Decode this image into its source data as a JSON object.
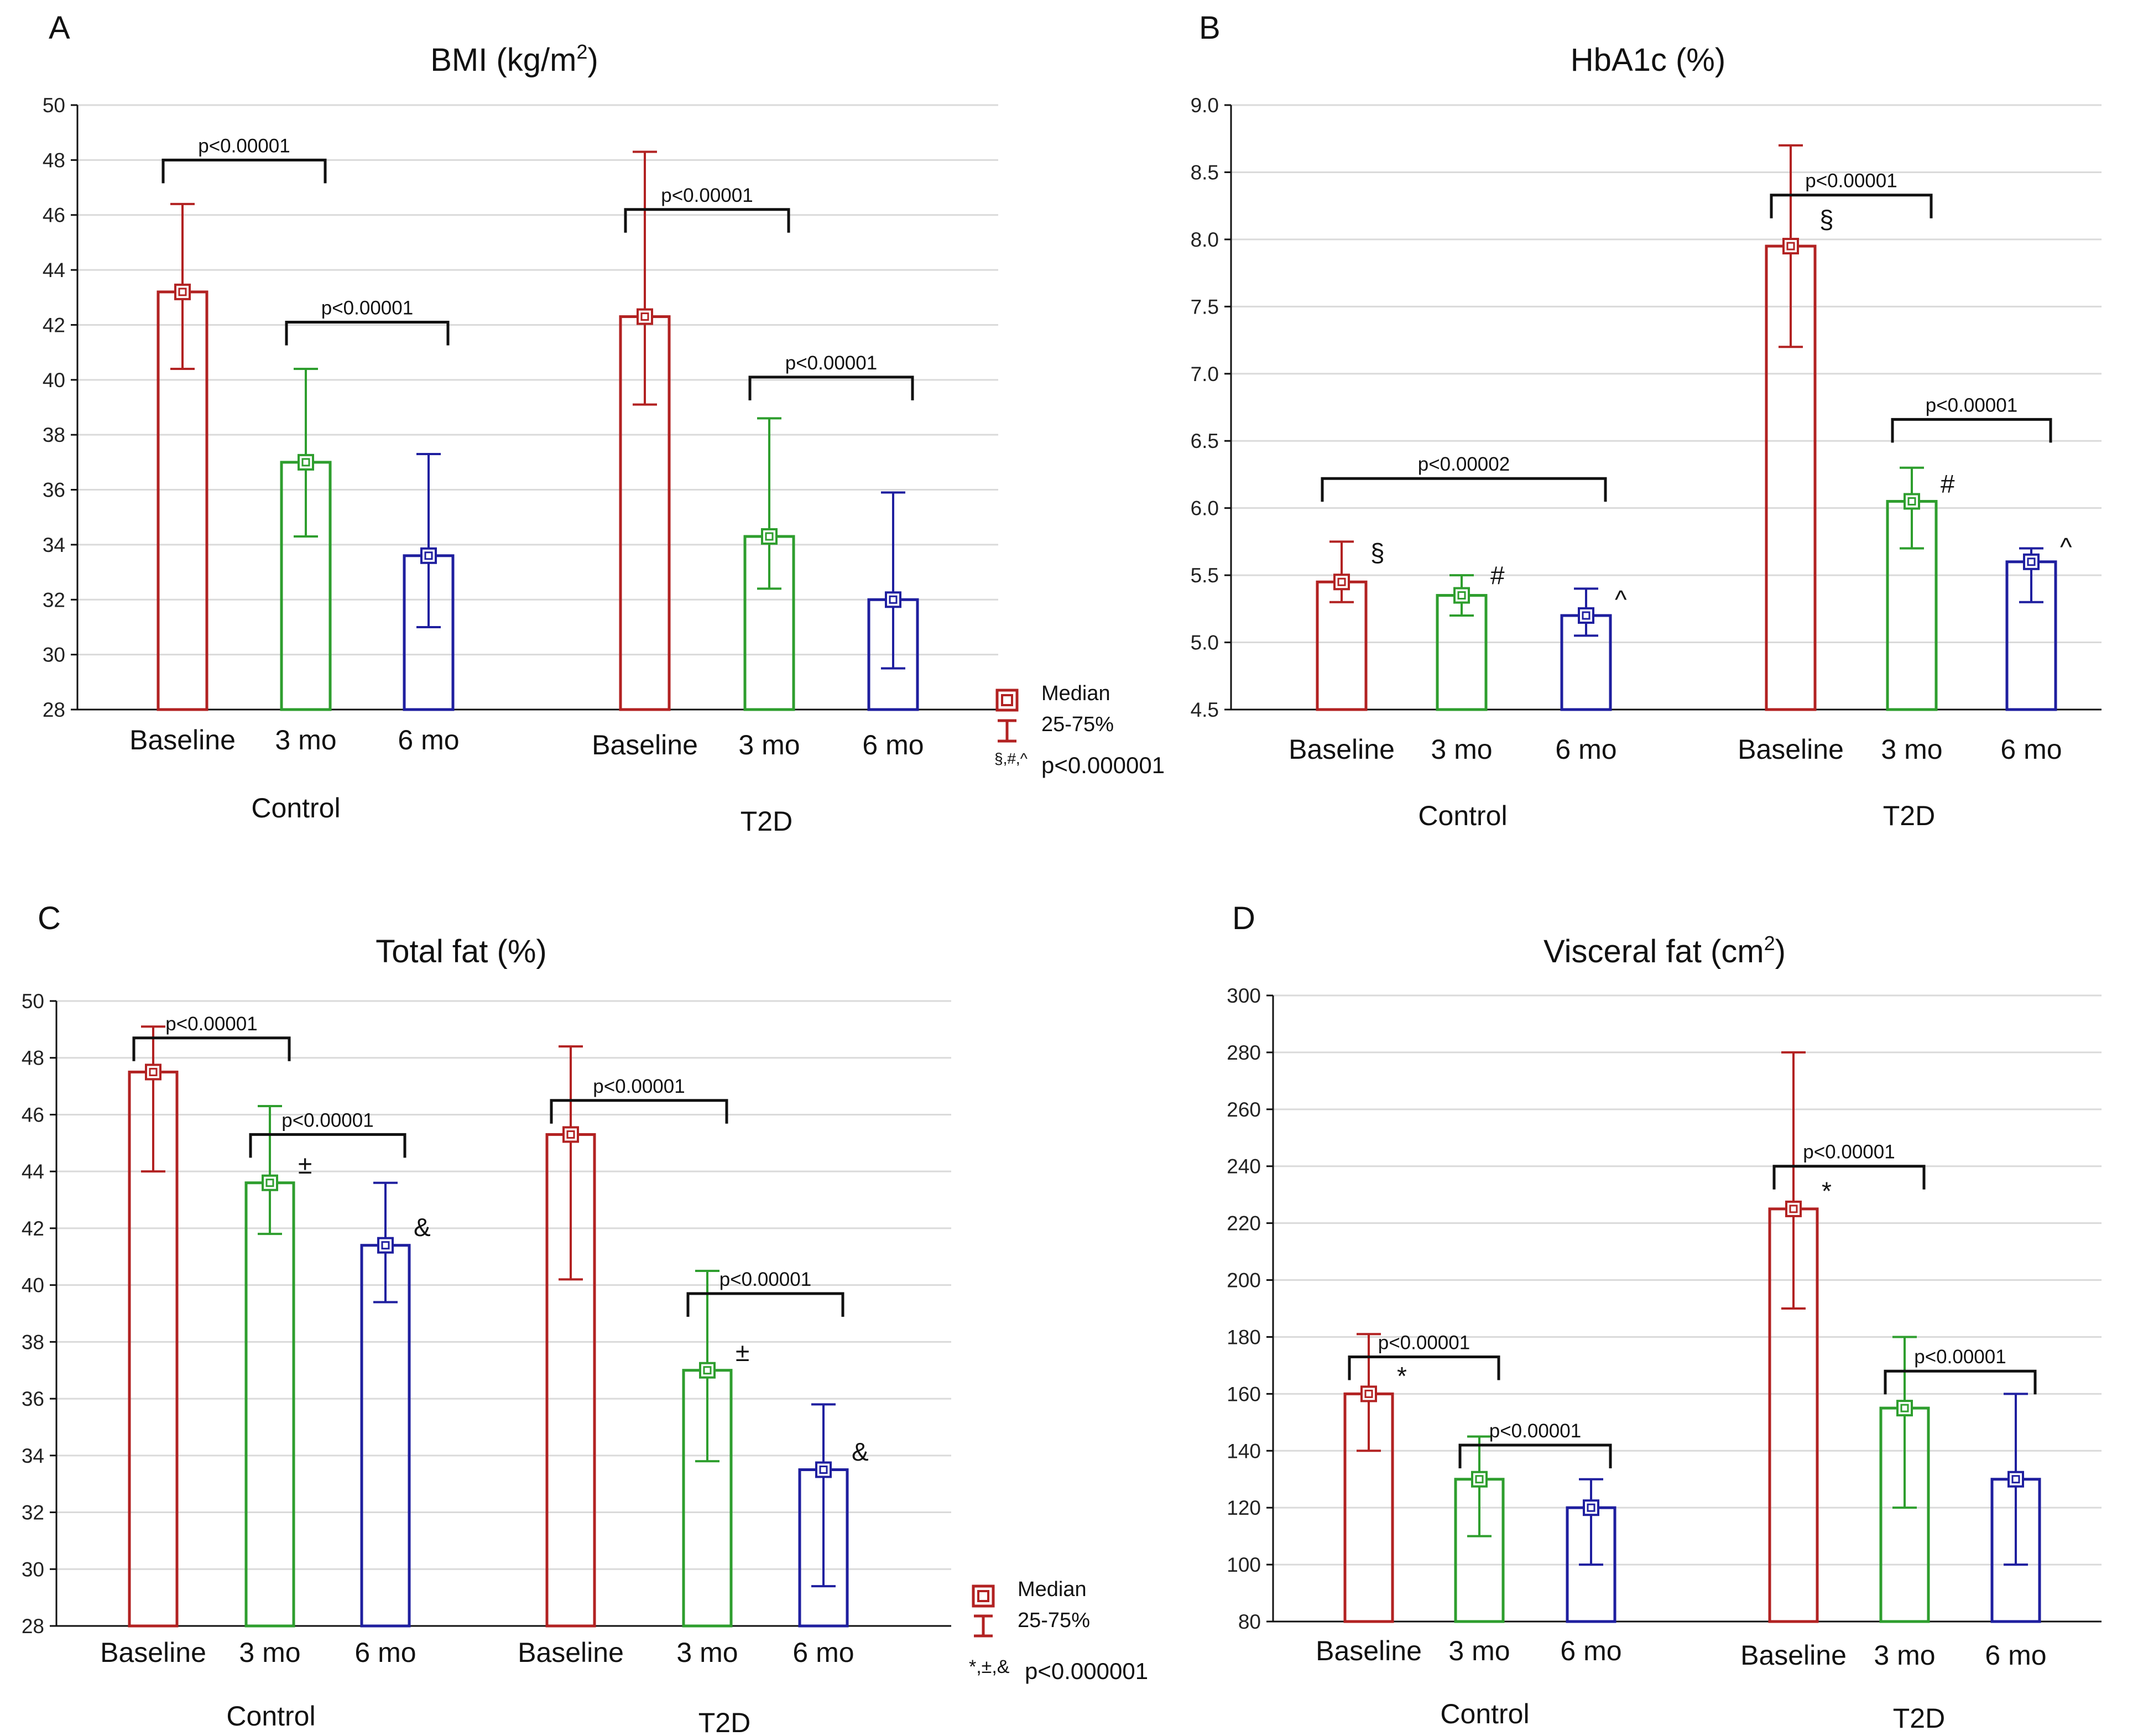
{
  "colors": {
    "baseline": "#b22222",
    "mo3": "#2e9e2e",
    "mo6": "#1f1f9f"
  },
  "legend_box_1": {
    "median_label": "Median",
    "range_label": "25-75%",
    "marks": "§,#,^",
    "note": "p<0.000001"
  },
  "legend_box_2": {
    "median_label": "Median",
    "range_label": "25-75%",
    "marks": "*,±,&",
    "note": "p<0.000001"
  },
  "chart_data": [
    {
      "panel": "A",
      "type": "bar",
      "title_main": "BMI (kg/m",
      "title_sup": "2",
      "title_end": ")",
      "ylim": [
        28,
        50
      ],
      "yticks": [
        28,
        30,
        32,
        34,
        36,
        38,
        40,
        42,
        44,
        46,
        48,
        50
      ],
      "ytick_decimals": 0,
      "categories": [
        "Baseline",
        "3 mo",
        "6 mo"
      ],
      "groups": [
        {
          "name": "Control",
          "series": [
            {
              "category": "Baseline",
              "median": 43.2,
              "q1": 40.4,
              "q3": 46.4
            },
            {
              "category": "3 mo",
              "median": 37.0,
              "q1": 34.3,
              "q3": 40.4
            },
            {
              "category": "6 mo",
              "median": 33.6,
              "q1": 31.0,
              "q3": 37.3
            }
          ]
        },
        {
          "name": "T2D",
          "series": [
            {
              "category": "Baseline",
              "median": 42.3,
              "q1": 39.1,
              "q3": 48.3
            },
            {
              "category": "3 mo",
              "median": 34.3,
              "q1": 32.4,
              "q3": 38.6
            },
            {
              "category": "6 mo",
              "median": 32.0,
              "q1": 29.5,
              "q3": 35.9
            }
          ]
        }
      ],
      "annotations": [
        {
          "group": 0,
          "from": 0,
          "to": 1,
          "level": 48,
          "text": "p<0.00001"
        },
        {
          "group": 0,
          "from": 1,
          "to": 2,
          "level": 42.1,
          "text": "p<0.00001"
        },
        {
          "group": 1,
          "from": 0,
          "to": 1,
          "level": 46.2,
          "text": "p<0.00001"
        },
        {
          "group": 1,
          "from": 1,
          "to": 2,
          "level": 40.1,
          "text": "p<0.00001"
        }
      ],
      "markers": []
    },
    {
      "panel": "B",
      "type": "bar",
      "title_main": "HbA1c (%)",
      "title_sup": "",
      "title_end": "",
      "ylim": [
        4.5,
        9.0
      ],
      "yticks": [
        4.5,
        5.0,
        5.5,
        6.0,
        6.5,
        7.0,
        7.5,
        8.0,
        8.5,
        9.0
      ],
      "ytick_decimals": 1,
      "categories": [
        "Baseline",
        "3 mo",
        "6 mo"
      ],
      "groups": [
        {
          "name": "Control",
          "series": [
            {
              "category": "Baseline",
              "median": 5.45,
              "q1": 5.3,
              "q3": 5.75
            },
            {
              "category": "3 mo",
              "median": 5.35,
              "q1": 5.2,
              "q3": 5.5
            },
            {
              "category": "6 mo",
              "median": 5.2,
              "q1": 5.05,
              "q3": 5.4
            }
          ]
        },
        {
          "name": "T2D",
          "series": [
            {
              "category": "Baseline",
              "median": 7.95,
              "q1": 7.2,
              "q3": 8.7
            },
            {
              "category": "3 mo",
              "median": 6.05,
              "q1": 5.7,
              "q3": 6.3
            },
            {
              "category": "6 mo",
              "median": 5.6,
              "q1": 5.3,
              "q3": 5.7
            }
          ]
        }
      ],
      "annotations": [
        {
          "group": 0,
          "from": 0,
          "to": 2,
          "level": 6.22,
          "text": "p<0.00002"
        },
        {
          "group": 1,
          "from": 0,
          "to": 1,
          "level": 8.33,
          "text": "p<0.00001"
        },
        {
          "group": 1,
          "from": 1,
          "to": 2,
          "level": 6.66,
          "text": "p<0.00001"
        }
      ],
      "markers": [
        {
          "group": 0,
          "bar": 0,
          "value": 5.62,
          "text": "§"
        },
        {
          "group": 0,
          "bar": 1,
          "value": 5.45,
          "text": "#"
        },
        {
          "group": 0,
          "bar": 2,
          "value": 5.27,
          "text": "^"
        },
        {
          "group": 1,
          "bar": 0,
          "value": 8.1,
          "text": "§"
        },
        {
          "group": 1,
          "bar": 1,
          "value": 6.13,
          "text": "#"
        },
        {
          "group": 1,
          "bar": 2,
          "value": 5.66,
          "text": "^"
        }
      ]
    },
    {
      "panel": "C",
      "type": "bar",
      "title_main": "Total fat (%)",
      "title_sup": "",
      "title_end": "",
      "ylim": [
        28,
        50
      ],
      "yticks": [
        28,
        30,
        32,
        34,
        36,
        38,
        40,
        42,
        44,
        46,
        48,
        50
      ],
      "ytick_decimals": 0,
      "categories": [
        "Baseline",
        "3 mo",
        "6 mo"
      ],
      "groups": [
        {
          "name": "Control",
          "series": [
            {
              "category": "Baseline",
              "median": 47.5,
              "q1": 44.0,
              "q3": 49.1
            },
            {
              "category": "3 mo",
              "median": 43.6,
              "q1": 41.8,
              "q3": 46.3
            },
            {
              "category": "6 mo",
              "median": 41.4,
              "q1": 39.4,
              "q3": 43.6
            }
          ]
        },
        {
          "name": "T2D",
          "series": [
            {
              "category": "Baseline",
              "median": 45.3,
              "q1": 40.2,
              "q3": 48.4
            },
            {
              "category": "3 mo",
              "median": 37.0,
              "q1": 33.8,
              "q3": 40.5
            },
            {
              "category": "6 mo",
              "median": 33.5,
              "q1": 29.4,
              "q3": 35.8
            }
          ]
        }
      ],
      "annotations": [
        {
          "group": 0,
          "from": 0,
          "to": 1,
          "level": 48.7,
          "text": "p<0.00001"
        },
        {
          "group": 0,
          "from": 1,
          "to": 2,
          "level": 45.3,
          "text": "p<0.00001"
        },
        {
          "group": 1,
          "from": 0,
          "to": 1,
          "level": 46.5,
          "text": "p<0.00001"
        },
        {
          "group": 1,
          "from": 1,
          "to": 2,
          "level": 39.7,
          "text": "p<0.00001"
        }
      ],
      "markers": [
        {
          "group": 0,
          "bar": 1,
          "value": 44.0,
          "text": "±"
        },
        {
          "group": 0,
          "bar": 2,
          "value": 41.8,
          "text": "&"
        },
        {
          "group": 1,
          "bar": 1,
          "value": 37.4,
          "text": "±"
        },
        {
          "group": 1,
          "bar": 2,
          "value": 33.9,
          "text": "&"
        }
      ]
    },
    {
      "panel": "D",
      "type": "bar",
      "title_main": "Visceral fat (cm",
      "title_sup": "2",
      "title_end": ")",
      "ylim": [
        80,
        300
      ],
      "yticks": [
        80,
        100,
        120,
        140,
        160,
        180,
        200,
        220,
        240,
        260,
        280,
        300
      ],
      "ytick_decimals": 0,
      "categories": [
        "Baseline",
        "3 mo",
        "6 mo"
      ],
      "groups": [
        {
          "name": "Control",
          "series": [
            {
              "category": "Baseline",
              "median": 160,
              "q1": 140,
              "q3": 181
            },
            {
              "category": "3 mo",
              "median": 130,
              "q1": 110,
              "q3": 145
            },
            {
              "category": "6 mo",
              "median": 120,
              "q1": 100,
              "q3": 130
            }
          ]
        },
        {
          "name": "T2D",
          "series": [
            {
              "category": "Baseline",
              "median": 225,
              "q1": 190,
              "q3": 280
            },
            {
              "category": "3 mo",
              "median": 155,
              "q1": 120,
              "q3": 180
            },
            {
              "category": "6 mo",
              "median": 130,
              "q1": 100,
              "q3": 160
            }
          ]
        }
      ],
      "annotations": [
        {
          "group": 0,
          "from": 0,
          "to": 1,
          "level": 173,
          "text": "p<0.00001"
        },
        {
          "group": 0,
          "from": 1,
          "to": 2,
          "level": 142,
          "text": "p<0.00001"
        },
        {
          "group": 1,
          "from": 0,
          "to": 1,
          "level": 240,
          "text": "p<0.00001"
        },
        {
          "group": 1,
          "from": 1,
          "to": 2,
          "level": 168,
          "text": "p<0.00001"
        }
      ],
      "markers": [
        {
          "group": 0,
          "bar": 0,
          "value": 164,
          "text": "*"
        },
        {
          "group": 1,
          "bar": 0,
          "value": 229,
          "text": "*"
        }
      ]
    }
  ]
}
